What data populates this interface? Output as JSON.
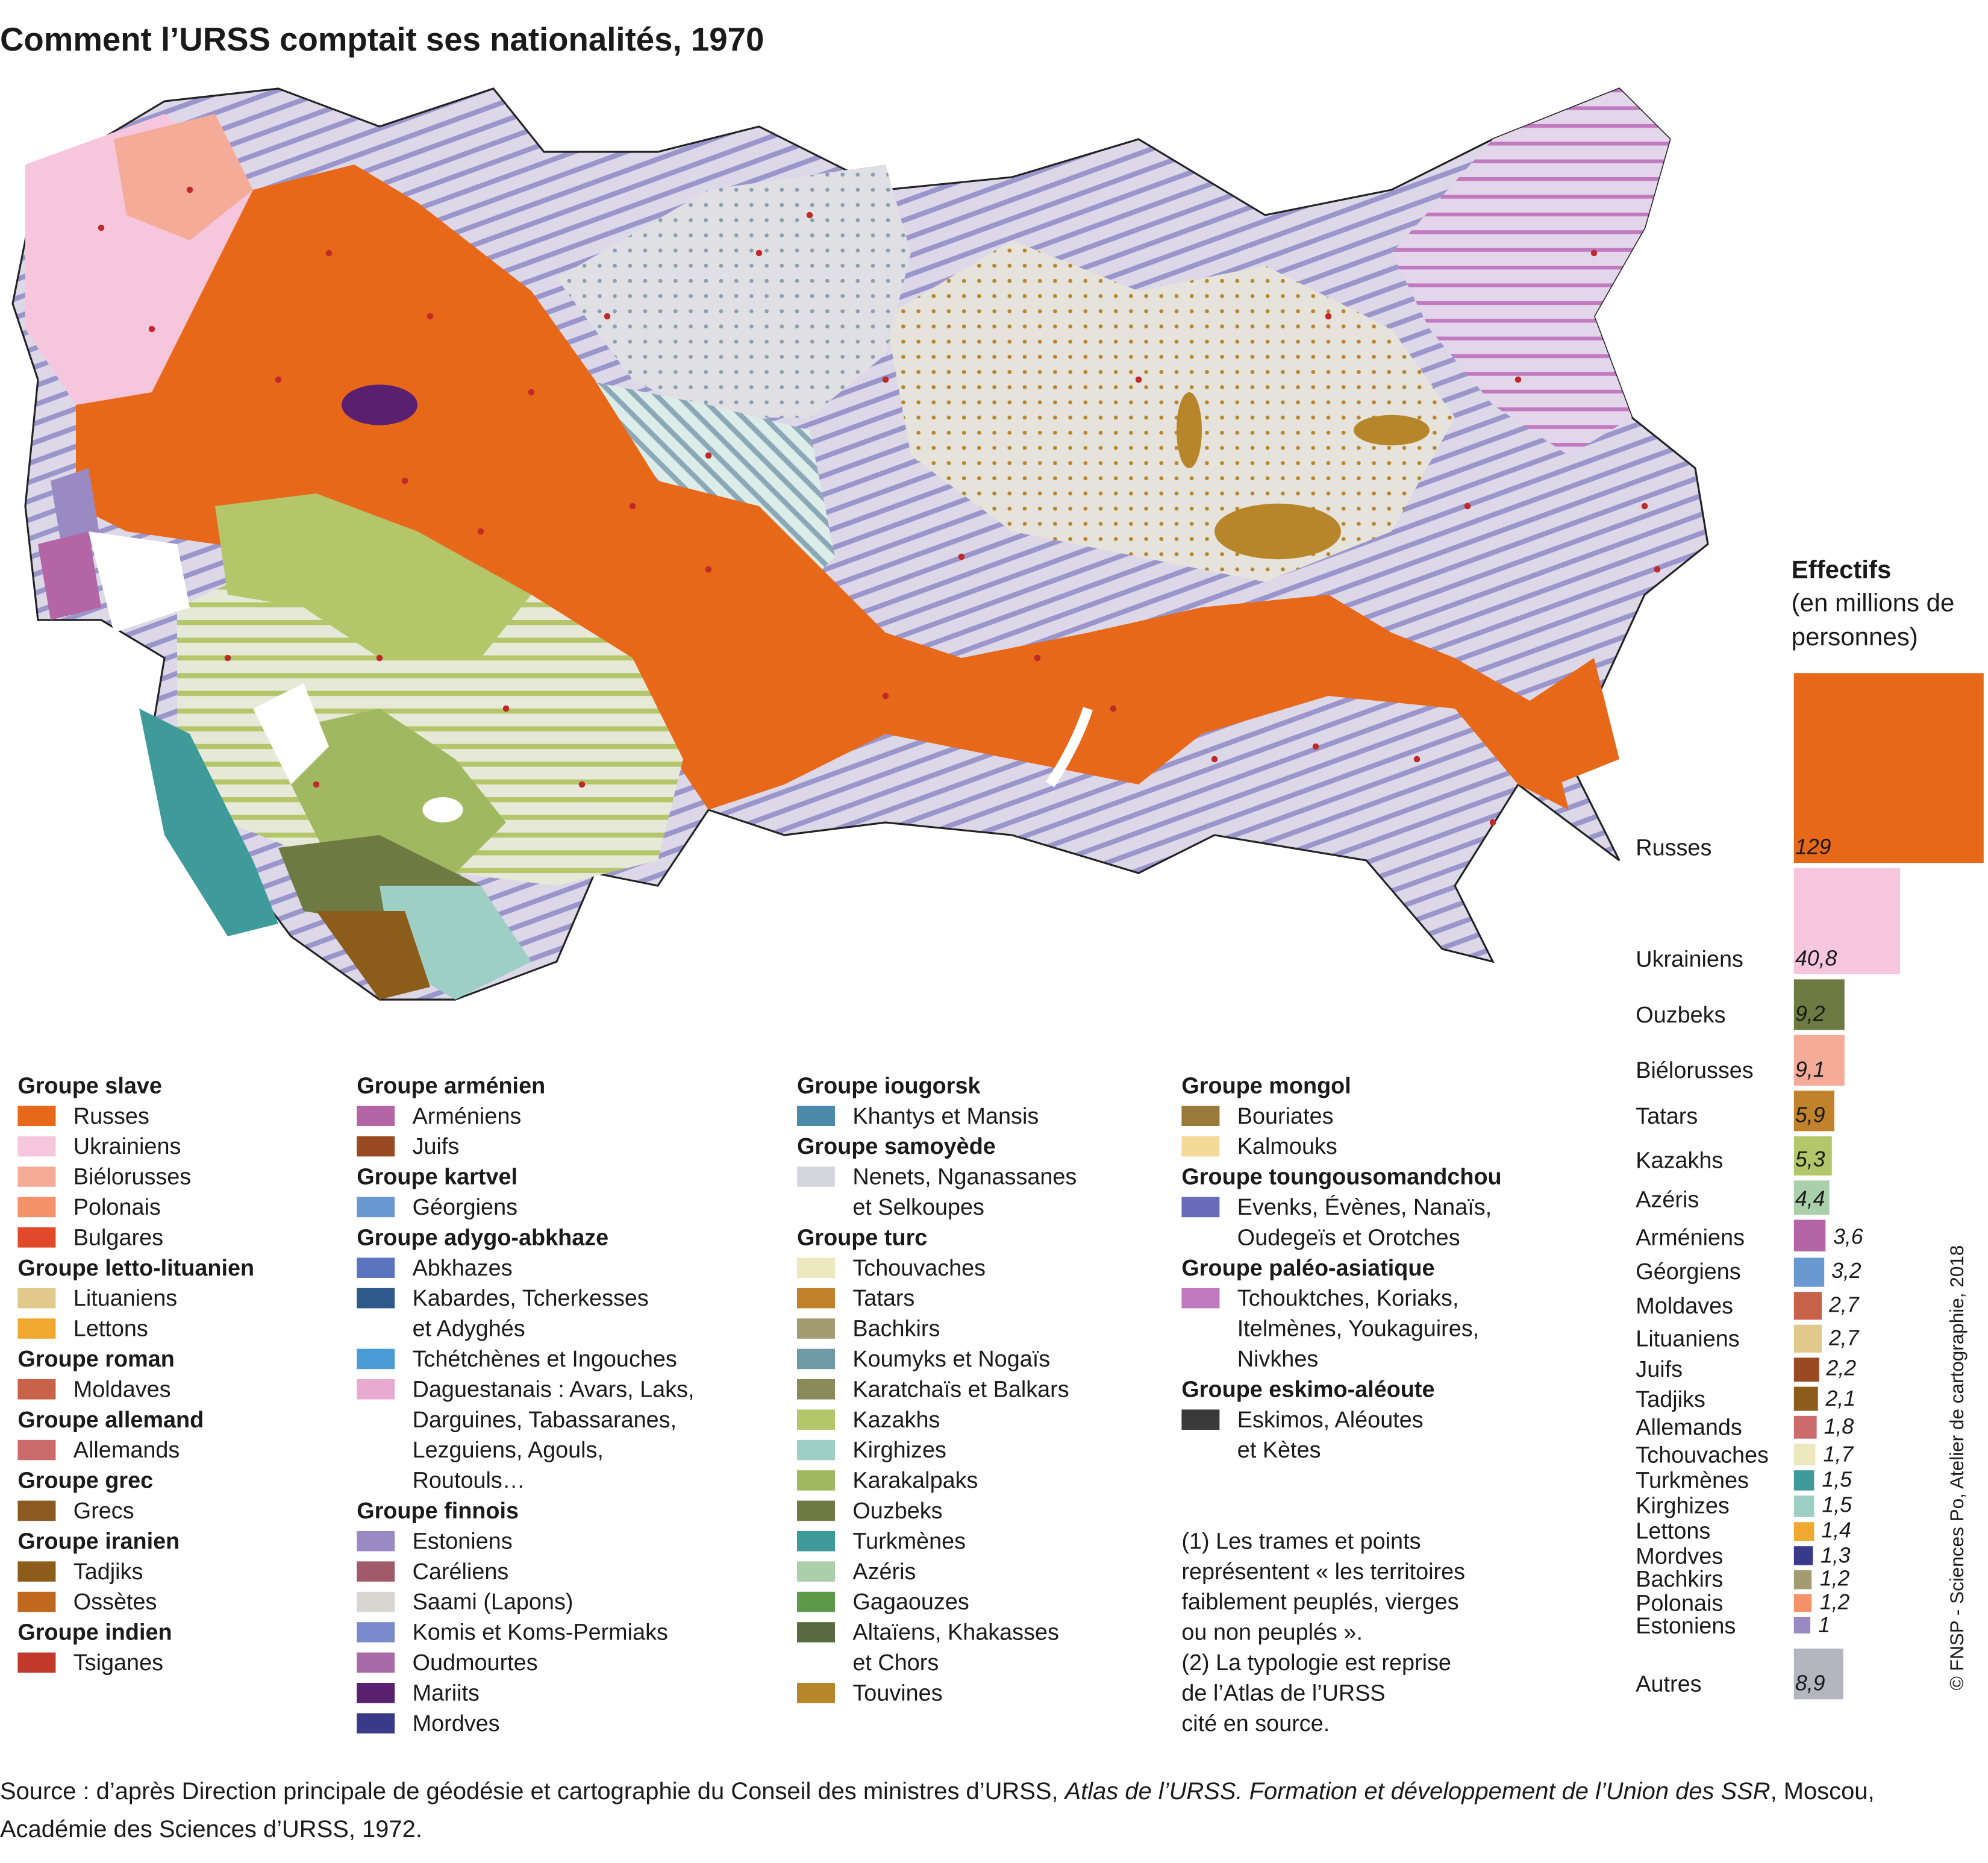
{
  "title": "Comment l’URSS comptait ses nationalités, 1970",
  "legend": {
    "columns": [
      [
        {
          "title": "Groupe slave",
          "items": [
            {
              "label": [
                "Russes"
              ],
              "color": "#e8681a"
            },
            {
              "label": [
                "Ukrainiens"
              ],
              "color": "#f6c7dc"
            },
            {
              "label": [
                "Biélorusses"
              ],
              "color": "#f4ab98"
            },
            {
              "label": [
                "Polonais"
              ],
              "color": "#f4926a"
            },
            {
              "label": [
                "Bulgares"
              ],
              "color": "#e04a2a"
            }
          ]
        },
        {
          "title": "Groupe letto-lituanien",
          "items": [
            {
              "label": [
                "Lituaniens"
              ],
              "color": "#e0c98a"
            },
            {
              "label": [
                "Lettons"
              ],
              "color": "#f0a830"
            }
          ]
        },
        {
          "title": "Groupe roman",
          "items": [
            {
              "label": [
                "Moldaves"
              ],
              "color": "#c8634a"
            }
          ]
        },
        {
          "title": "Groupe allemand",
          "items": [
            {
              "label": [
                "Allemands"
              ],
              "color": "#cc6b6b"
            }
          ]
        },
        {
          "title": "Groupe grec",
          "items": [
            {
              "label": [
                "Grecs"
              ],
              "color": "#8b5a20"
            }
          ]
        },
        {
          "title": "Groupe iranien",
          "items": [
            {
              "label": [
                "Tadjiks"
              ],
              "color": "#8b5c1a"
            },
            {
              "label": [
                "Ossètes"
              ],
              "color": "#c0681e"
            }
          ]
        },
        {
          "title": "Groupe indien",
          "items": [
            {
              "label": [
                "Tsiganes"
              ],
              "color": "#c0392b"
            }
          ]
        }
      ],
      [
        {
          "title": "Groupe arménien",
          "items": [
            {
              "label": [
                "Arméniens"
              ],
              "color": "#b465a6"
            },
            {
              "label": [
                "Juifs"
              ],
              "color": "#9a4a22"
            }
          ]
        },
        {
          "title": "Groupe kartvel",
          "items": [
            {
              "label": [
                "Géorgiens"
              ],
              "color": "#6a98d0"
            }
          ]
        },
        {
          "title": "Groupe adygo-abkhaze",
          "items": [
            {
              "label": [
                "Abkhazes"
              ],
              "color": "#5a74c0"
            },
            {
              "label": [
                "Kabardes, Tcherkesses",
                "et Adyghés"
              ],
              "color": "#2d5a8a"
            },
            {
              "label": [
                "Tchétchènes et Ingouches"
              ],
              "color": "#4a9ad6"
            },
            {
              "label": [
                "Daguestanais : Avars, Laks,",
                "Darguines, Tabassaranes,",
                "Lezguiens, Agouls,",
                "Routouls…"
              ],
              "color": "#e8aad0"
            }
          ]
        },
        {
          "title": "Groupe finnois",
          "items": [
            {
              "label": [
                "Estoniens"
              ],
              "color": "#9a8ac4"
            },
            {
              "label": [
                "Caréliens"
              ],
              "color": "#a05a6a"
            },
            {
              "label": [
                "Saami (Lapons)"
              ],
              "color": "#d8d6d0"
            },
            {
              "label": [
                "Komis et Koms-Permiaks"
              ],
              "color": "#7a8acc"
            },
            {
              "label": [
                "Oudmourtes"
              ],
              "color": "#a86aa8"
            },
            {
              "label": [
                "Mariits"
              ],
              "color": "#5a2070"
            },
            {
              "label": [
                "Mordves"
              ],
              "color": "#3a3a8a"
            }
          ]
        }
      ],
      [
        {
          "title": "Groupe iougorsk",
          "items": [
            {
              "label": [
                "Khantys et Mansis"
              ],
              "color": "#4a8aa8"
            }
          ]
        },
        {
          "title": "Groupe samoyède",
          "items": [
            {
              "label": [
                "Nenets, Nganassanes",
                "et Selkoupes"
              ],
              "color": "#d4d6dc"
            }
          ]
        },
        {
          "title": "Groupe turc",
          "items": [
            {
              "label": [
                "Tchouvaches"
              ],
              "color": "#ede8bd"
            },
            {
              "label": [
                "Tatars"
              ],
              "color": "#c0822a"
            },
            {
              "label": [
                "Bachkirs"
              ],
              "color": "#a39c73"
            },
            {
              "label": [
                "Koumyks et Nogaïs"
              ],
              "color": "#6e9aa6"
            },
            {
              "label": [
                "Karatchaïs et Balkars"
              ],
              "color": "#8a8a5a"
            },
            {
              "label": [
                "Kazakhs"
              ],
              "color": "#b5c66a"
            },
            {
              "label": [
                "Kirghizes"
              ],
              "color": "#9dcfc4"
            },
            {
              "label": [
                "Karakalpaks"
              ],
              "color": "#a0b860"
            },
            {
              "label": [
                "Ouzbeks"
              ],
              "color": "#6e7a41"
            },
            {
              "label": [
                "Turkmènes"
              ],
              "color": "#3f9a9a"
            },
            {
              "label": [
                "Azéris"
              ],
              "color": "#a9d0a8"
            },
            {
              "label": [
                "Gagaouzes"
              ],
              "color": "#5a9a4a"
            },
            {
              "label": [
                "Altaïens, Khakasses",
                "et Chors"
              ],
              "color": "#5a6a40"
            },
            {
              "label": [
                "Touvines"
              ],
              "color": "#b8862a"
            }
          ]
        }
      ],
      [
        {
          "title": "Groupe mongol",
          "items": [
            {
              "label": [
                "Bouriates"
              ],
              "color": "#9a7a3a"
            },
            {
              "label": [
                "Kalmouks"
              ],
              "color": "#f4da98"
            }
          ]
        },
        {
          "title": "Groupe toungousomandchou",
          "items": [
            {
              "label": [
                "Evenks, Évènes, Nanaïs,",
                "Oudegeïs et Orotches"
              ],
              "color": "#6a6abc"
            }
          ]
        },
        {
          "title": "Groupe paléo-asiatique",
          "items": [
            {
              "label": [
                "Tchouktches, Koriaks,",
                "Itelmènes, Youkaguires,",
                "Nivkhes"
              ],
              "color": "#c07ac0"
            }
          ]
        },
        {
          "title": "Groupe eskimo-aléoute",
          "items": [
            {
              "label": [
                "Eskimos, Aléoutes",
                "et Kètes"
              ],
              "color": "#3a3a3a"
            }
          ]
        }
      ]
    ]
  },
  "notes": [
    "(1) Les trames et points",
    "représentent « les territoires",
    "faiblement peuplés, vierges",
    "ou non peuplés ».",
    "(2) La typologie est reprise",
    "de l’Atlas de l’URSS",
    "cité en source."
  ],
  "source": {
    "before": "Source : d’après Direction principale de géodésie et cartographie du Conseil des ministres d’URSS, ",
    "work": "Atlas de l’URSS. Formation et développement de l’Union des SSR",
    "after": ", Moscou, Académie des Sciences d’URSS, 1972."
  },
  "credit": "© FNSP - Sciences Po, Atelier de cartographie, 2018",
  "chart_data": {
    "type": "square",
    "title": "Effectifs",
    "subtitle": "(en millions de personnes)",
    "categories": [
      "Russes",
      "Ukrainiens",
      "Ouzbeks",
      "Biélorusses",
      "Tatars",
      "Kazakhs",
      "Azéris",
      "Arméniens",
      "Géorgiens",
      "Moldaves",
      "Lituaniens",
      "Juifs",
      "Tadjiks",
      "Allemands",
      "Tchouvaches",
      "Turkmènes",
      "Kirghizes",
      "Lettons",
      "Mordves",
      "Bachkirs",
      "Polonais",
      "Estoniens",
      "Autres"
    ],
    "values": [
      129,
      40.8,
      9.2,
      9.1,
      5.9,
      5.3,
      4.4,
      3.6,
      3.2,
      2.7,
      2.7,
      2.2,
      2.1,
      1.8,
      1.7,
      1.5,
      1.5,
      1.4,
      1.3,
      1.2,
      1.2,
      1,
      8.9
    ],
    "value_labels": [
      "129",
      "40,8",
      "9,2",
      "9,1",
      "5,9",
      "5,3",
      "4,4",
      "3,6",
      "3,2",
      "2,7",
      "2,7",
      "2,2",
      "2,1",
      "1,8",
      "1,7",
      "1,5",
      "1,5",
      "1,4",
      "1,3",
      "1,2",
      "1,2",
      "1",
      "8,9"
    ],
    "colors": [
      "#e8681a",
      "#f6c7dc",
      "#6e7a41",
      "#f4ab98",
      "#c0822a",
      "#b5c66a",
      "#a9d0a8",
      "#b465a6",
      "#6a98d0",
      "#c8634a",
      "#e0c98a",
      "#9a4a22",
      "#8b5c1a",
      "#cc6b6b",
      "#ede8bd",
      "#3f9a9a",
      "#9dcfc4",
      "#f0a830",
      "#3a3a8a",
      "#a39c73",
      "#f4926a",
      "#9a8ac4",
      "#b5b5bf"
    ]
  }
}
